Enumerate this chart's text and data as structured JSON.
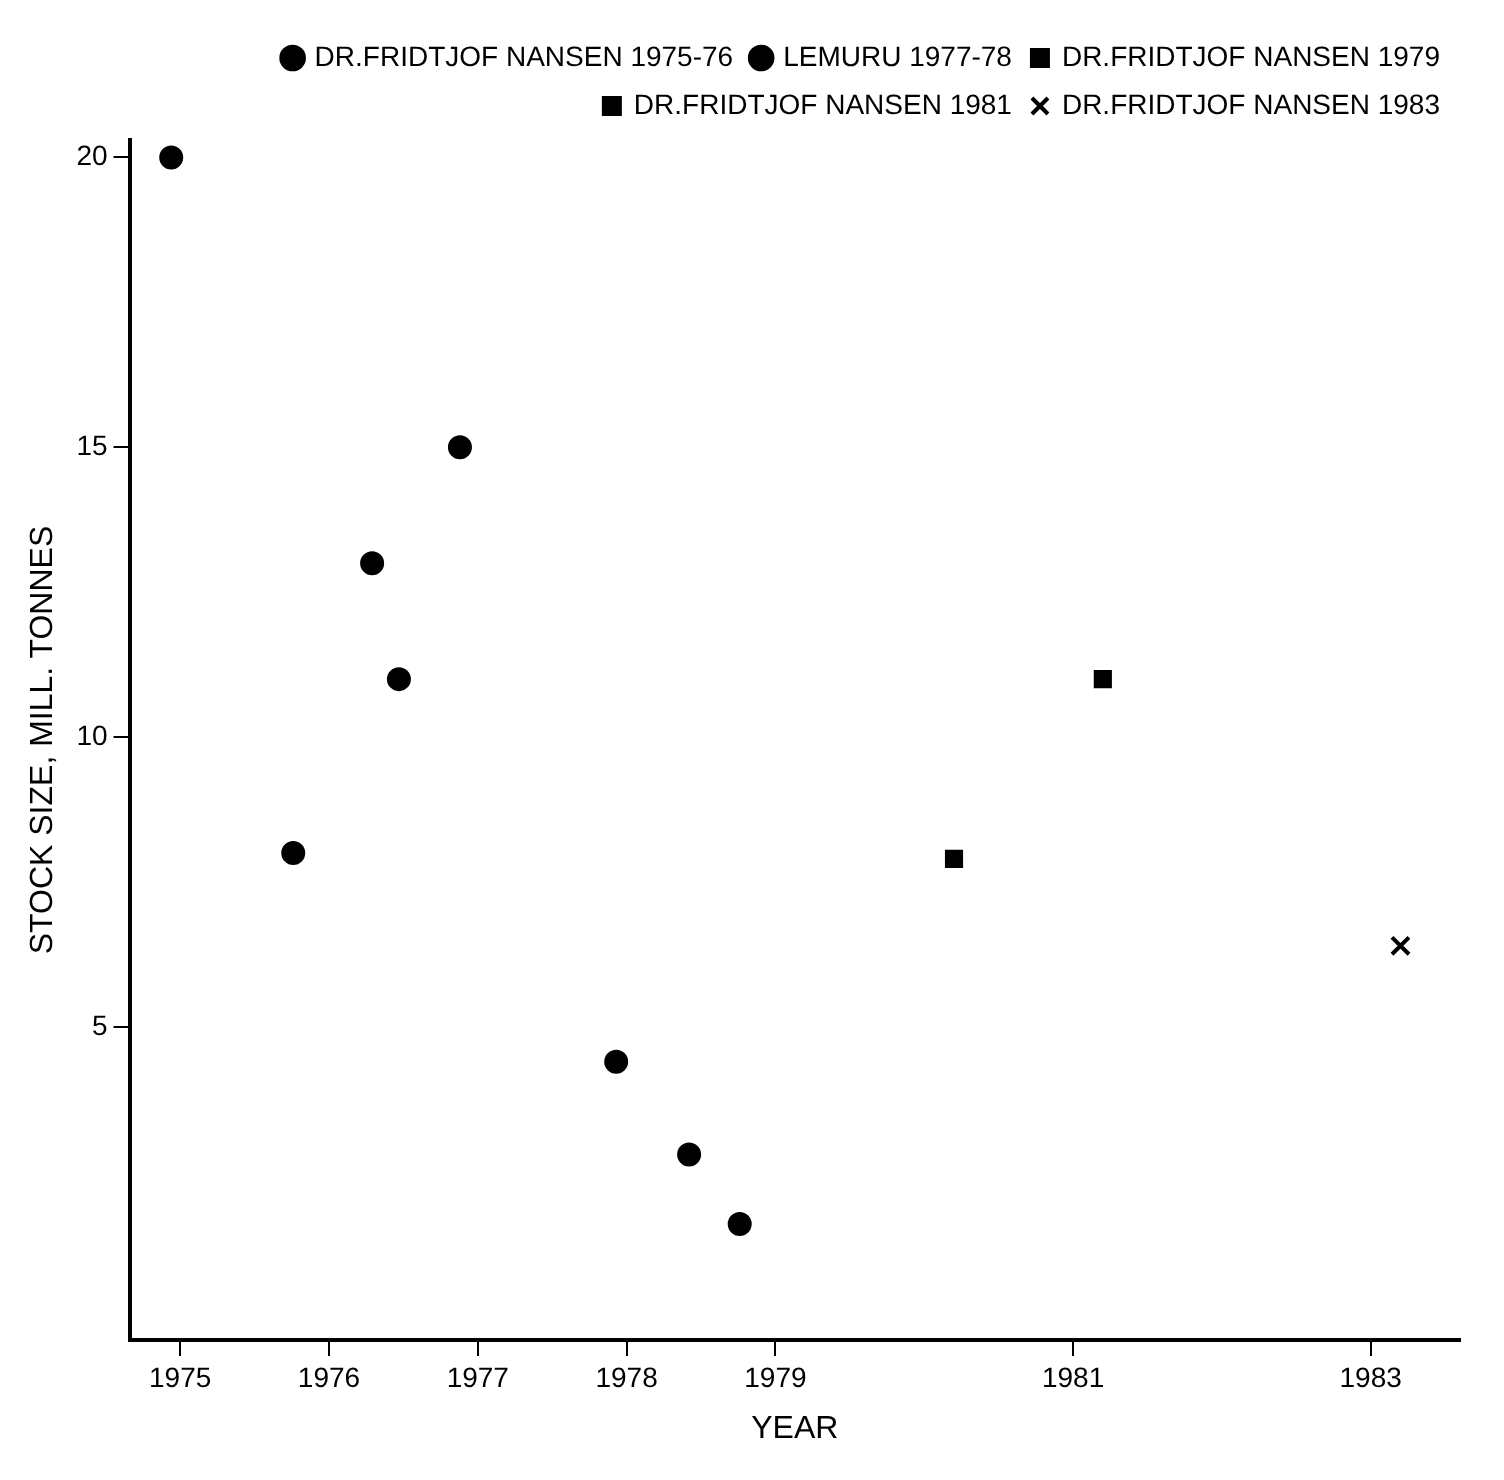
{
  "chart_data": {
    "type": "scatter",
    "xlabel": "YEAR",
    "ylabel": "STOCK SIZE, MILL. TONNES",
    "xlim": [
      1974.66,
      1983.6
    ],
    "xticks": [
      1975,
      1976,
      1977,
      1978,
      1979,
      1981,
      1983
    ],
    "ylim": [
      -0.4,
      20.3
    ],
    "yticks": [
      5,
      10,
      15,
      20
    ],
    "grid": false,
    "legend": "top right",
    "series": [
      {
        "name": "DR.FRIDTJOF NANSEN 1975-76",
        "color": "#000000",
        "marker": "circle",
        "x": [
          1974.94,
          1975.76,
          1976.29,
          1976.47,
          1976.88
        ],
        "values": [
          20,
          8,
          13,
          11,
          15
        ]
      },
      {
        "name": "LEMURU 1977-78",
        "color": "#000000",
        "marker": "circle",
        "x": [
          1977.93,
          1978.42,
          1978.76
        ],
        "values": [
          4.4,
          2.8,
          1.6
        ]
      },
      {
        "name": "DR.FRIDTJOF NANSEN 1979",
        "color": "#000000",
        "marker": "square",
        "x": [
          1980.2
        ],
        "values": [
          7.9
        ]
      },
      {
        "name": "DR.FRIDTJOF NANSEN 1981",
        "color": "#000000",
        "marker": "square",
        "x": [
          1981.2
        ],
        "values": [
          11
        ]
      },
      {
        "name": "DR.FRIDTJOF NANSEN 1983",
        "color": "#000000",
        "marker": "cross",
        "x": [
          1983.2
        ],
        "values": [
          6.4
        ]
      }
    ]
  }
}
